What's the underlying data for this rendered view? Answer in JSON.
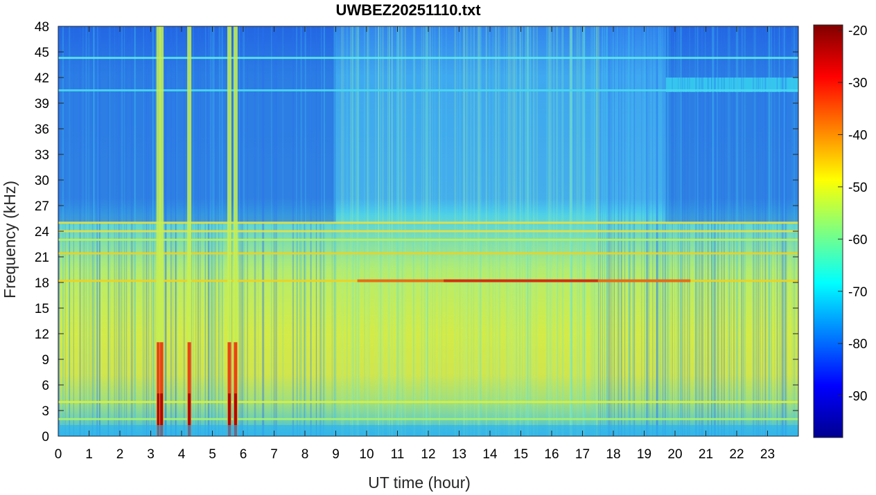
{
  "chart_data": {
    "type": "heatmap",
    "title": "UWBEZ20251110.txt",
    "xlabel": "UT time (hour)",
    "ylabel": "Frequency (kHz)",
    "xlim": [
      0,
      24
    ],
    "ylim": [
      0,
      48
    ],
    "x_ticks": [
      "0",
      "1",
      "2",
      "3",
      "4",
      "5",
      "6",
      "7",
      "8",
      "9",
      "10",
      "11",
      "12",
      "13",
      "14",
      "15",
      "16",
      "17",
      "18",
      "19",
      "20",
      "21",
      "22",
      "23"
    ],
    "y_ticks": [
      "0",
      "3",
      "6",
      "9",
      "12",
      "15",
      "18",
      "21",
      "24",
      "27",
      "30",
      "33",
      "36",
      "39",
      "42",
      "45",
      "48"
    ],
    "colorbar": {
      "colormap": "jet",
      "range": [
        -98,
        -19
      ],
      "ticks": [
        "-90",
        "-80",
        "-70",
        "-60",
        "-50",
        "-40",
        "-30",
        "-20"
      ]
    },
    "features": {
      "background_level_dB": {
        "low_freq_band_0_17kHz_night": -60,
        "low_freq_band_0_17kHz_day": -52,
        "high_freq_band_25_48kHz_night": -82,
        "high_freq_band_25_48kHz_day": -70
      },
      "transmitter_lines_kHz": [
        18.2,
        21.4,
        24.0,
        25.0,
        23.0,
        4.0,
        2.0,
        44.3,
        40.5
      ],
      "broadband_bursts_hour": [
        3.25,
        3.35,
        4.25,
        5.55,
        5.75
      ]
    }
  }
}
